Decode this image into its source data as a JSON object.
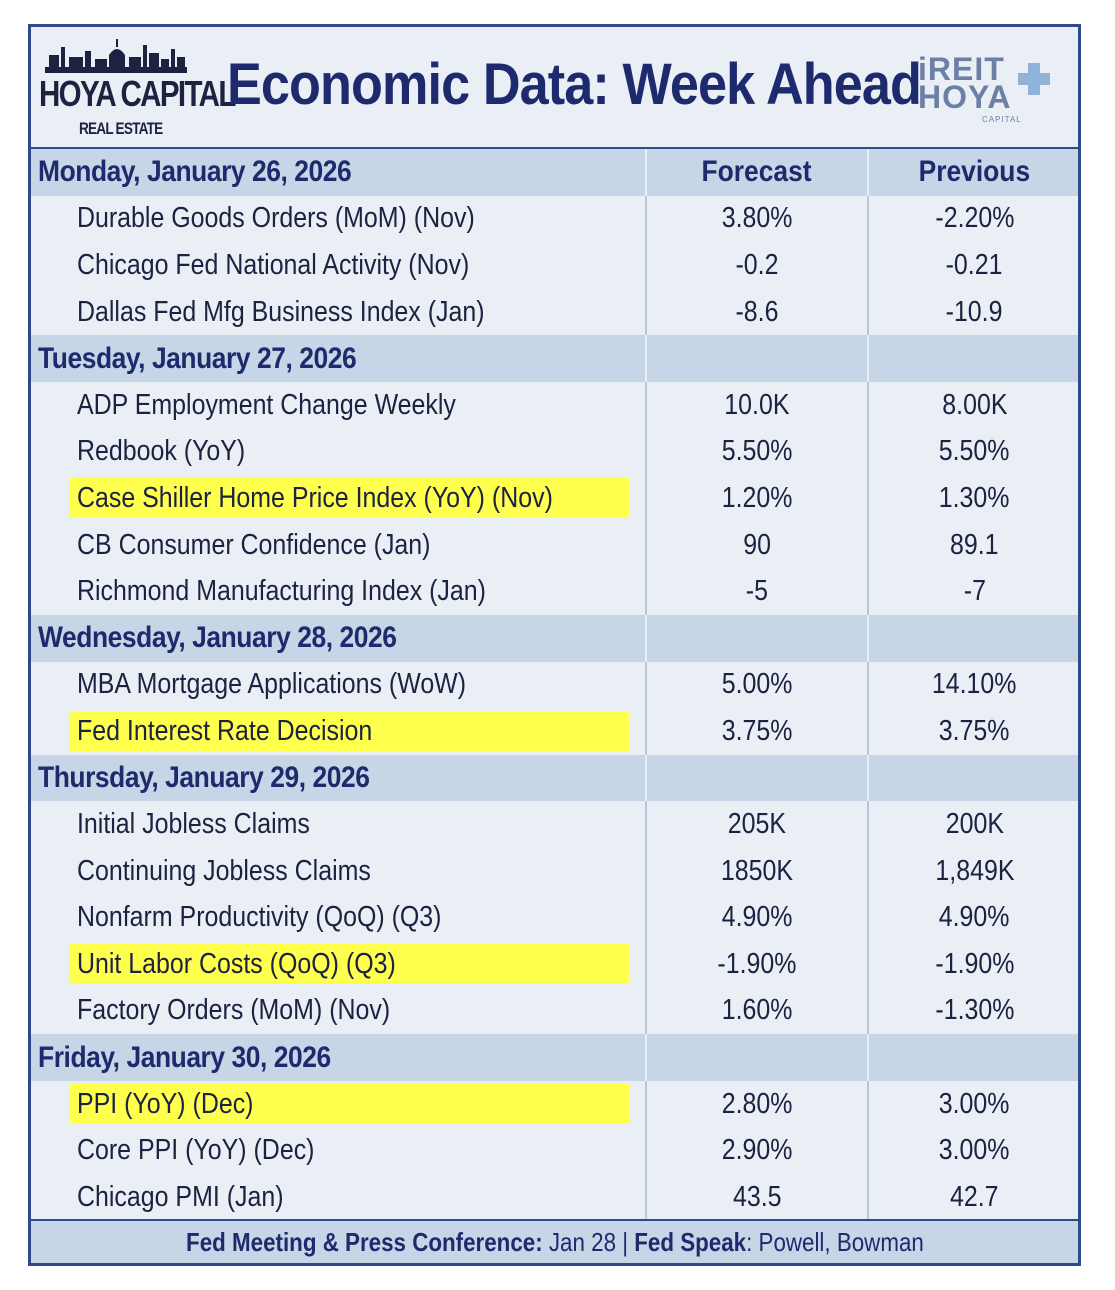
{
  "header": {
    "logo_left_brand": "HOYA CAPITAL",
    "logo_left_sub": "REAL ESTATE",
    "title": "Economic Data: Week Ahead",
    "logo_right_top": "iREIT",
    "logo_right_bottom": "HOYA",
    "logo_right_sub": "CAPITAL"
  },
  "columns": {
    "forecast": "Forecast",
    "previous": "Previous"
  },
  "days": [
    {
      "label": "Monday, January 26, 2026",
      "items": [
        {
          "name": "Durable Goods Orders (MoM) (Nov)",
          "forecast": "3.80%",
          "previous": "-2.20%",
          "highlight": false
        },
        {
          "name": "Chicago Fed National Activity (Nov)",
          "forecast": "-0.2",
          "previous": "-0.21",
          "highlight": false
        },
        {
          "name": "Dallas Fed Mfg Business Index (Jan)",
          "forecast": "-8.6",
          "previous": "-10.9",
          "highlight": false
        }
      ]
    },
    {
      "label": "Tuesday, January 27, 2026",
      "items": [
        {
          "name": "ADP Employment Change Weekly",
          "forecast": "10.0K",
          "previous": "8.00K",
          "highlight": false
        },
        {
          "name": "Redbook (YoY)",
          "forecast": "5.50%",
          "previous": "5.50%",
          "highlight": false
        },
        {
          "name": "Case Shiller Home Price Index (YoY) (Nov)",
          "forecast": "1.20%",
          "previous": "1.30%",
          "highlight": true
        },
        {
          "name": "CB Consumer Confidence (Jan)",
          "forecast": "90",
          "previous": "89.1",
          "highlight": false
        },
        {
          "name": "Richmond Manufacturing Index (Jan)",
          "forecast": "-5",
          "previous": "-7",
          "highlight": false
        }
      ]
    },
    {
      "label": "Wednesday, January 28, 2026",
      "items": [
        {
          "name": "MBA Mortgage Applications (WoW)",
          "forecast": "5.00%",
          "previous": "14.10%",
          "highlight": false
        },
        {
          "name": "Fed Interest Rate Decision",
          "forecast": "3.75%",
          "previous": "3.75%",
          "highlight": true
        }
      ]
    },
    {
      "label": "Thursday, January 29, 2026",
      "items": [
        {
          "name": "Initial Jobless Claims",
          "forecast": "205K",
          "previous": "200K",
          "highlight": false
        },
        {
          "name": "Continuing Jobless Claims",
          "forecast": "1850K",
          "previous": "1,849K",
          "highlight": false
        },
        {
          "name": "Nonfarm Productivity (QoQ) (Q3)",
          "forecast": "4.90%",
          "previous": "4.90%",
          "highlight": false
        },
        {
          "name": "Unit Labor Costs (QoQ) (Q3)",
          "forecast": "-1.90%",
          "previous": "-1.90%",
          "highlight": true
        },
        {
          "name": "Factory Orders (MoM) (Nov)",
          "forecast": "1.60%",
          "previous": "-1.30%",
          "highlight": false
        }
      ]
    },
    {
      "label": "Friday, January 30, 2026",
      "items": [
        {
          "name": "PPI (YoY) (Dec)",
          "forecast": "2.80%",
          "previous": "3.00%",
          "highlight": true
        },
        {
          "name": "Core PPI (YoY) (Dec)",
          "forecast": "2.90%",
          "previous": "3.00%",
          "highlight": false
        },
        {
          "name": "Chicago PMI (Jan)",
          "forecast": "43.5",
          "previous": "42.7",
          "highlight": false
        }
      ]
    }
  ],
  "footer": {
    "meeting_label": "Fed Meeting & Press Conference:",
    "meeting_value": " Jan 28 | ",
    "speak_label": "Fed Speak",
    "speak_value": ": Powell, Bowman"
  },
  "colors": {
    "navy": "#1e2a6e",
    "day_band": "#c7d6e6",
    "row_bg": "#eaeff6",
    "highlight": "#ffff4d",
    "border": "#2f4a8a"
  }
}
